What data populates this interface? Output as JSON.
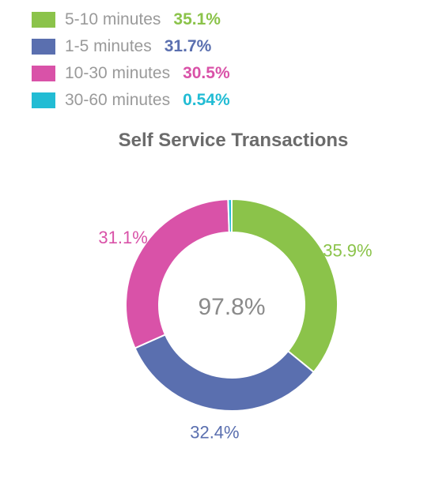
{
  "legend": [
    {
      "label": "5-10 minutes",
      "value": "35.1%",
      "color": "#8bc34a"
    },
    {
      "label": "1-5 minutes",
      "value": "31.7%",
      "color": "#5a6faf"
    },
    {
      "label": "10-30 minutes",
      "value": "30.5%",
      "color": "#d952a8"
    },
    {
      "label": "30-60 minutes",
      "value": "0.54%",
      "color": "#22bcd4"
    }
  ],
  "chart_data": {
    "type": "pie",
    "title": "Self Service Transactions",
    "center_label": "97.8%",
    "slices": [
      {
        "name": "5-10 minutes",
        "value": 35.9,
        "label": "35.9%",
        "color": "#8bc34a"
      },
      {
        "name": "1-5 minutes",
        "value": 32.4,
        "label": "32.4%",
        "color": "#5a6faf"
      },
      {
        "name": "10-30 minutes",
        "value": 31.1,
        "label": "31.1%",
        "color": "#d952a8"
      },
      {
        "name": "30-60 minutes",
        "value": 0.55,
        "label": "",
        "color": "#22bcd4"
      }
    ]
  }
}
